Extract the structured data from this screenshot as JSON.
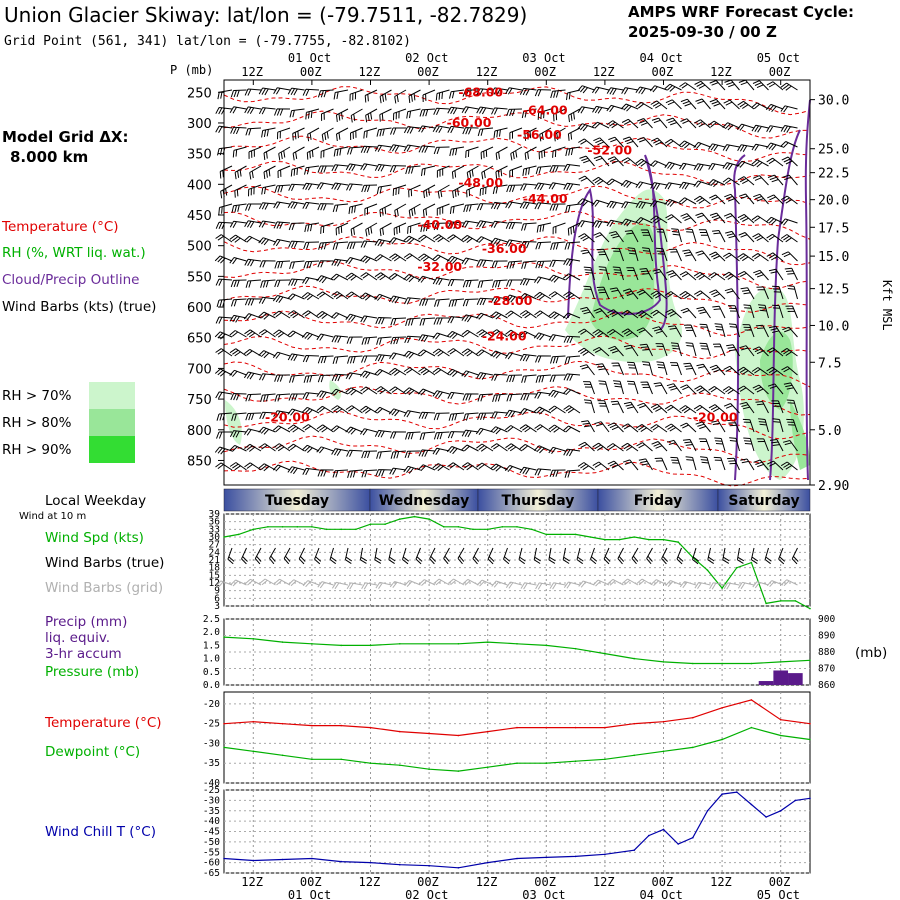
{
  "header": {
    "title": "Union Glacier Skiway:  lat/lon = (-79.7511, -82.7829)",
    "grid_point": "Grid Point (561, 341) lat/lon = (-79.7755, -82.8102)",
    "cycle_line1": "AMPS WRF Forecast Cycle:",
    "cycle_line2": "2025-09-30 / 00  Z"
  },
  "model_grid": {
    "line1": "Model Grid ΔX:",
    "line2": "8.000 km"
  },
  "colors": {
    "temperature": "#e00000",
    "rh": "#00b000",
    "cloud": "#6a2c9a",
    "wind": "#000000",
    "windgrid": "#b0b0b0",
    "pressure": "#00b000",
    "precip": "#5a1a8a",
    "windchill": "#0000aa",
    "rh70": "#ccf5cc",
    "rh80": "#99e699",
    "rh90": "#33dd33"
  },
  "legend_left": {
    "temperature": "Temperature (°C)",
    "rh": "RH (%, WRT liq. wat.)",
    "cloud": "Cloud/Precip Outline",
    "wind": "Wind Barbs (kts) (true)",
    "rh70": "RH > 70%",
    "rh80": "RH > 80%",
    "rh90": "RH > 90%"
  },
  "axes": {
    "p_label": "P (mb)",
    "kft_label": "Kft MSL",
    "top_hours": [
      "12Z",
      "00Z",
      "12Z",
      "00Z",
      "12Z",
      "00Z",
      "12Z",
      "00Z",
      "12Z",
      "00Z"
    ],
    "top_dates": [
      "01 Oct",
      "02 Oct",
      "03 Oct",
      "04 Oct",
      "05 Oct"
    ],
    "bottom_hours": [
      "12Z",
      "00Z",
      "12Z",
      "00Z",
      "12Z",
      "00Z",
      "12Z",
      "00Z",
      "12Z",
      "00Z"
    ],
    "bottom_dates": [
      "01 Oct",
      "02 Oct",
      "03 Oct",
      "04 Oct",
      "05 Oct"
    ]
  },
  "weekday": {
    "label": "Local Weekday",
    "sub": "Wind at 10 m",
    "days": [
      "Tuesday",
      "Wednesday",
      "Thursday",
      "Friday",
      "Saturday"
    ]
  },
  "panel_labels": {
    "wind_spd": "Wind Spd (kts)",
    "wind_true": "Wind Barbs (true)",
    "wind_grid": "Wind Barbs (grid)",
    "precip1": "Precip (mm)",
    "precip2": "liq. equiv.",
    "precip3": "3-hr accum",
    "pressure": "Pressure (mb)",
    "temperature": "Temperature (°C)",
    "dewpoint": "Dewpoint (°C)",
    "windchill": "Wind Chill T (°C)",
    "pressure_unit": "(mb)"
  },
  "chart_data": [
    {
      "type": "heatmap",
      "name": "cross-section",
      "pressure_levels": [
        "250",
        "300",
        "350",
        "400",
        "450",
        "500",
        "550",
        "600",
        "650",
        "700",
        "750",
        "800",
        "850"
      ],
      "height_labels": [
        {
          "kft": "30.0",
          "p": 262
        },
        {
          "kft": "25.0",
          "p": 342
        },
        {
          "kft": "22.5",
          "p": 381
        },
        {
          "kft": "20.0",
          "p": 425
        },
        {
          "kft": "17.5",
          "p": 470
        },
        {
          "kft": "15.0",
          "p": 517
        },
        {
          "kft": "12.5",
          "p": 570
        },
        {
          "kft": "10.0",
          "p": 630
        },
        {
          "kft": "7.5",
          "p": 690
        },
        {
          "kft": "5.0",
          "p": 800
        },
        {
          "kft": "2.90",
          "p": 890
        }
      ],
      "temperature_labels": [
        {
          "text": "-68.00",
          "t": 40,
          "p": 250
        },
        {
          "text": "-64.00",
          "t": 51,
          "p": 280
        },
        {
          "text": "-60.00",
          "t": 38,
          "p": 300
        },
        {
          "text": "-56.00",
          "t": 50,
          "p": 320
        },
        {
          "text": "-52.00",
          "t": 62,
          "p": 345
        },
        {
          "text": "-48.00",
          "t": 40,
          "p": 398
        },
        {
          "text": "-44.00",
          "t": 51,
          "p": 424
        },
        {
          "text": "-40.00",
          "t": 33,
          "p": 466
        },
        {
          "text": "-36.00",
          "t": 44,
          "p": 505
        },
        {
          "text": "-32.00",
          "t": 33,
          "p": 535
        },
        {
          "text": "-28.00",
          "t": 45,
          "p": 590
        },
        {
          "text": "-24.00",
          "t": 44,
          "p": 648
        },
        {
          "text": "-20.00",
          "t": 80,
          "p": 780
        },
        {
          "text": "-20.00",
          "t": 7,
          "p": 780
        }
      ]
    },
    {
      "type": "line",
      "name": "wind speed",
      "ylabel": "Wind Spd (kts)",
      "yticks": [
        3,
        6,
        9,
        12,
        15,
        18,
        21,
        24,
        27,
        30,
        33,
        36,
        39
      ],
      "ylim": [
        3,
        39
      ],
      "x_hours": [
        0,
        3,
        6,
        9,
        12,
        15,
        18,
        21,
        24,
        27,
        30,
        33,
        36,
        39,
        42,
        45,
        48,
        51,
        54,
        57,
        60,
        63,
        66,
        69,
        72,
        75,
        78,
        81,
        84,
        87,
        90,
        93,
        96,
        99,
        102,
        105,
        108,
        111,
        114,
        117,
        120
      ],
      "values": [
        30,
        31,
        33,
        34,
        34,
        34,
        34,
        33,
        33,
        33,
        35,
        35,
        37,
        38,
        37,
        34,
        34,
        33,
        33,
        34,
        34,
        33,
        31,
        31,
        31,
        30,
        29,
        29,
        30,
        29,
        29,
        28,
        22,
        17,
        10,
        18,
        20,
        4,
        5,
        5,
        2
      ]
    },
    {
      "type": "line",
      "name": "pressure",
      "ylabel": "Pressure (mb)",
      "yticks_left": [
        "0.0",
        "0.5",
        "1.0",
        "1.5",
        "2.0",
        "2.5"
      ],
      "yticks_right": [
        "860",
        "870",
        "880",
        "890",
        "900"
      ],
      "ylim": [
        860,
        900
      ],
      "x_hours": [
        0,
        6,
        12,
        18,
        24,
        30,
        36,
        42,
        48,
        54,
        60,
        66,
        72,
        78,
        84,
        90,
        96,
        102,
        108,
        114,
        120
      ],
      "values": [
        889,
        888,
        886,
        885,
        884,
        884,
        885,
        885,
        885,
        886,
        885,
        884,
        882,
        879,
        876,
        874,
        873,
        873,
        873,
        874,
        875
      ],
      "precip": [
        {
          "x": 111,
          "mm": 0.15
        },
        {
          "x": 114,
          "mm": 0.55
        },
        {
          "x": 117,
          "mm": 0.45
        }
      ]
    },
    {
      "type": "line",
      "name": "temperature and dewpoint",
      "yticks": [
        -40,
        -35,
        -30,
        -25,
        -20
      ],
      "ylim": [
        -40,
        -17
      ],
      "x_hours": [
        0,
        6,
        12,
        18,
        24,
        30,
        36,
        42,
        48,
        54,
        60,
        66,
        72,
        78,
        84,
        90,
        96,
        102,
        108,
        114,
        120
      ],
      "series": [
        {
          "name": "Temperature (°C)",
          "values": [
            -25,
            -24.5,
            -25,
            -25.5,
            -25.5,
            -26,
            -27,
            -27.5,
            -28,
            -27,
            -26,
            -26,
            -26,
            -26,
            -25,
            -24.5,
            -23.5,
            -21,
            -19,
            -24,
            -25
          ]
        },
        {
          "name": "Dewpoint (°C)",
          "values": [
            -31,
            -32,
            -33,
            -34,
            -34,
            -35,
            -35.5,
            -36.5,
            -37,
            -36,
            -35,
            -35,
            -34.5,
            -34,
            -33,
            -32,
            -31,
            -29,
            -26,
            -28,
            -29
          ]
        }
      ]
    },
    {
      "type": "line",
      "name": "wind chill",
      "ylabel": "Wind Chill T (°C)",
      "yticks": [
        -65,
        -60,
        -55,
        -50,
        -45,
        -40,
        -35,
        -30,
        -25
      ],
      "ylim": [
        -65,
        -25
      ],
      "x_hours": [
        0,
        6,
        12,
        18,
        24,
        30,
        36,
        42,
        48,
        54,
        60,
        66,
        72,
        78,
        84,
        87,
        90,
        93,
        96,
        99,
        102,
        105,
        108,
        111,
        114,
        117,
        120
      ],
      "values": [
        -58,
        -59,
        -58.5,
        -58,
        -59.5,
        -60,
        -61,
        -61.5,
        -62.5,
        -60,
        -58,
        -57.5,
        -57,
        -56,
        -54,
        -47,
        -44,
        -51,
        -48,
        -35,
        -27,
        -26,
        -32,
        -38,
        -35,
        -30,
        -29
      ]
    }
  ]
}
